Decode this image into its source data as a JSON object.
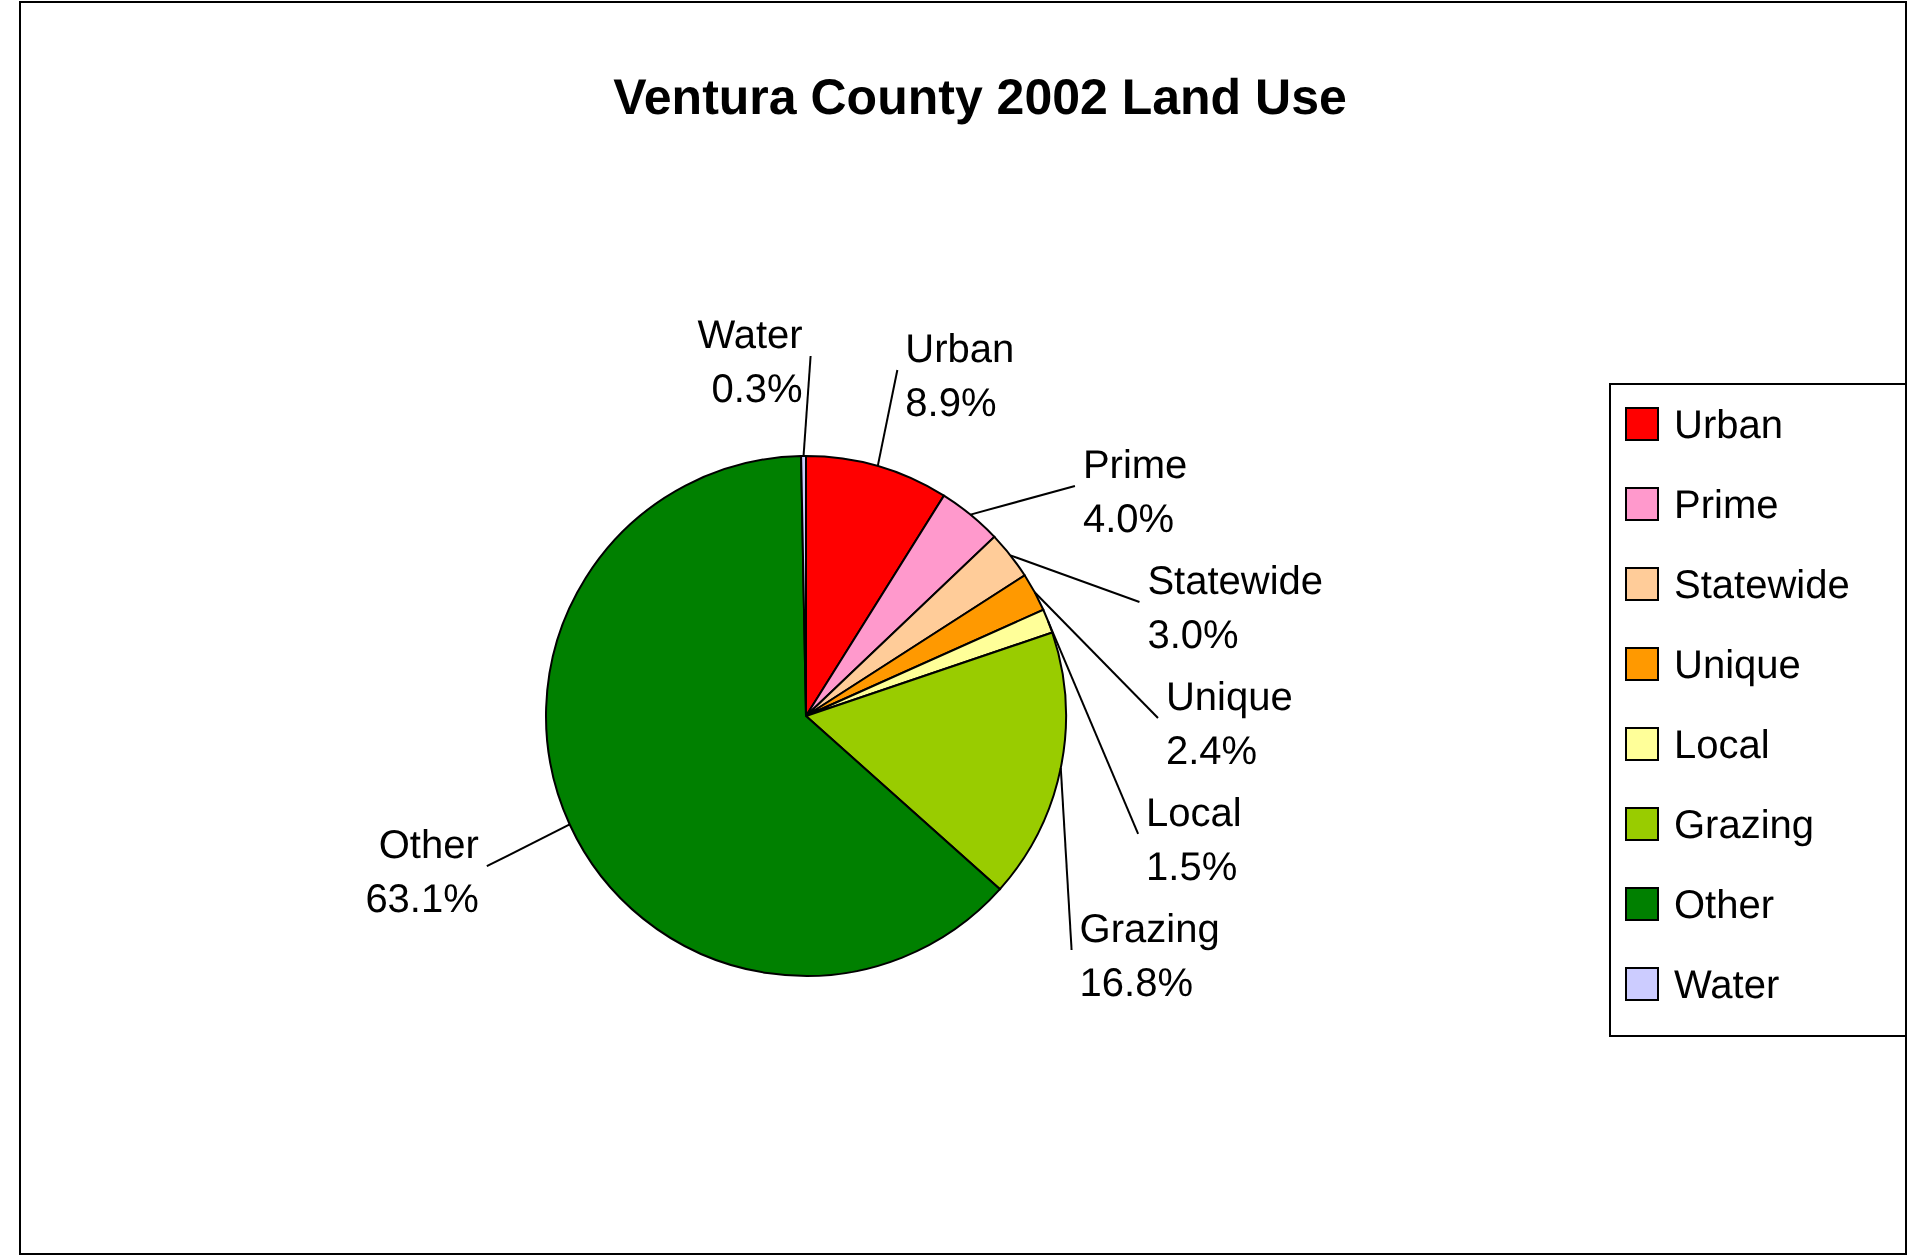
{
  "chart_data": {
    "type": "pie",
    "title": "Ventura County 2002 Land Use",
    "categories": [
      "Urban",
      "Prime",
      "Statewide",
      "Unique",
      "Local",
      "Grazing",
      "Other",
      "Water"
    ],
    "values": [
      8.9,
      4.0,
      3.0,
      2.4,
      1.5,
      16.8,
      63.1,
      0.3
    ],
    "colors": [
      "#ff0000",
      "#ff99cc",
      "#ffcc99",
      "#ff9900",
      "#ffff99",
      "#99cc00",
      "#008000",
      "#ccccff"
    ],
    "value_labels": [
      "8.9%",
      "4.0%",
      "3.0%",
      "2.4%",
      "1.5%",
      "16.8%",
      "63.1%",
      "0.3%"
    ],
    "legend": "right"
  }
}
